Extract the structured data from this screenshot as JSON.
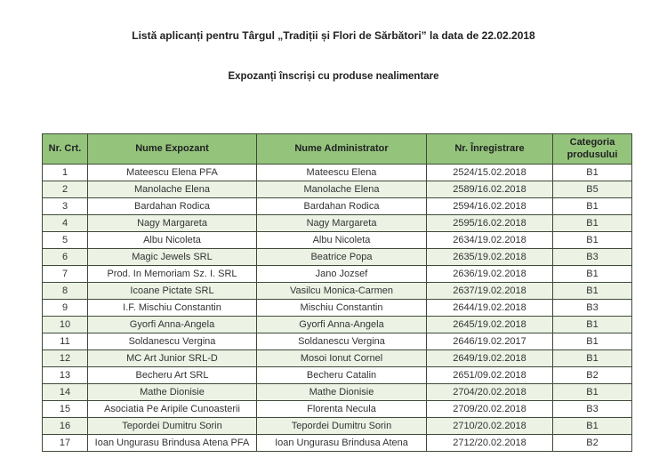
{
  "document": {
    "title": "Listă aplicanți pentru Târgul „Tradiții și Flori de Sărbători” la data de 22.02.2018",
    "subtitle": "Expozanți înscriși cu produse nealimentare"
  },
  "colors": {
    "header_bg": "#94c47c",
    "alt_row_bg": "#ecf3e5",
    "border": "#3e4a37"
  },
  "table": {
    "headers": [
      "Nr. Crt.",
      "Nume Expozant",
      "Nume Administrator",
      "Nr. Înregistrare",
      "Categoria produsului"
    ],
    "column_keys": [
      "nr-crt",
      "nume-expozant",
      "nume-administrator",
      "nr-inregistrare",
      "categoria-produsului"
    ],
    "rows": [
      [
        "1",
        "Mateescu Elena PFA",
        "Mateescu Elena",
        "2524/15.02.2018",
        "B1"
      ],
      [
        "2",
        "Manolache Elena",
        "Manolache Elena",
        "2589/16.02.2018",
        "B5"
      ],
      [
        "3",
        "Bardahan Rodica",
        "Bardahan Rodica",
        "2594/16.02.2018",
        "B1"
      ],
      [
        "4",
        "Nagy Margareta",
        "Nagy Margareta",
        "2595/16.02.2018",
        "B1"
      ],
      [
        "5",
        "Albu Nicoleta",
        "Albu Nicoleta",
        "2634/19.02.2018",
        "B1"
      ],
      [
        "6",
        "Magic Jewels SRL",
        "Beatrice Popa",
        "2635/19.02.2018",
        "B3"
      ],
      [
        "7",
        "Prod. In Memoriam Sz. I. SRL",
        "Jano Jozsef",
        "2636/19.02.2018",
        "B1"
      ],
      [
        "8",
        "Icoane Pictate SRL",
        "Vasilcu Monica-Carmen",
        "2637/19.02.2018",
        "B1"
      ],
      [
        "9",
        "I.F. Mischiu Constantin",
        "Mischiu Constantin",
        "2644/19.02.2018",
        "B3"
      ],
      [
        "10",
        "Gyorfi Anna-Angela",
        "Gyorfi Anna-Angela",
        "2645/19.02.2018",
        "B1"
      ],
      [
        "11",
        "Soldanescu Vergina",
        "Soldanescu Vergina",
        "2646/19.02.2017",
        "B1"
      ],
      [
        "12",
        "MC Art Junior SRL-D",
        "Mosoi Ionut Cornel",
        "2649/19.02.2018",
        "B1"
      ],
      [
        "13",
        "Becheru Art SRL",
        "Becheru Catalin",
        "2651/09.02.2018",
        "B2"
      ],
      [
        "14",
        "Mathe Dionisie",
        "Mathe Dionisie",
        "2704/20.02.2018",
        "B1"
      ],
      [
        "15",
        "Asociatia Pe Aripile Cunoasterii",
        "Florenta Necula",
        "2709/20.02.2018",
        "B3"
      ],
      [
        "16",
        "Tepordei Dumitru Sorin",
        "Tepordei Dumitru Sorin",
        "2710/20.02.2018",
        "B1"
      ],
      [
        "17",
        "Ioan Ungurasu Brindusa Atena PFA",
        "Ioan Ungurasu Brindusa Atena",
        "2712/20.02.2018",
        "B2"
      ]
    ]
  }
}
